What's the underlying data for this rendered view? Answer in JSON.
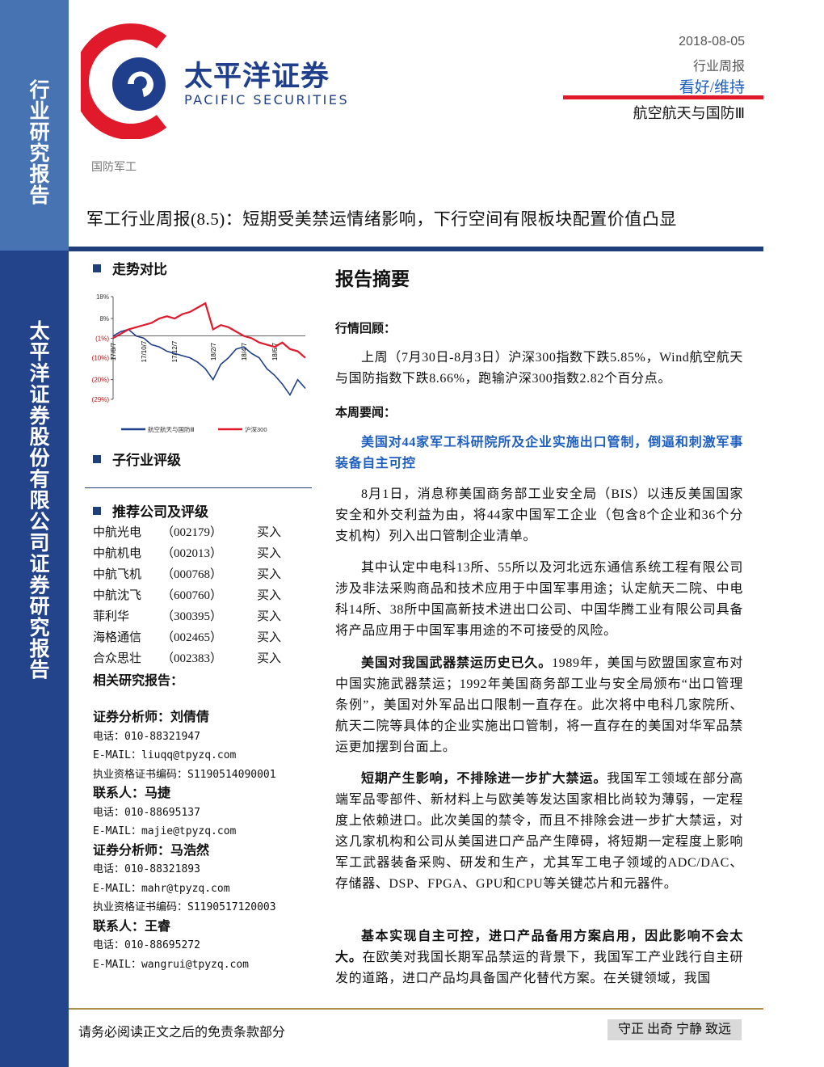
{
  "sidebar": {
    "top": "行业研究报告",
    "bottom": "太平洋证券股份有限公司证券研究报告"
  },
  "header": {
    "logo_cn": "太平洋证券",
    "logo_en": "PACIFIC SECURITIES",
    "date": "2018-08-05",
    "report_type": "行业周报",
    "rating": "看好/维持",
    "industry": "航空航天与国防Ⅲ"
  },
  "sector": "国防军工",
  "title": "军工行业周报(8.5)：短期受美禁运情绪影响，下行空间有限板块配置价值凸显",
  "left": {
    "trend_heading": "走势对比",
    "sub_rating_heading": "子行业评级",
    "recommend_heading": "推荐公司及评级",
    "companies": [
      {
        "name": "中航光电",
        "code": "（002179）",
        "rating": "买入"
      },
      {
        "name": "中航机电",
        "code": "（002013）",
        "rating": "买入"
      },
      {
        "name": "中航飞机",
        "code": "（000768）",
        "rating": "买入"
      },
      {
        "name": "中航沈飞",
        "code": "（600760）",
        "rating": "买入"
      },
      {
        "name": "菲利华",
        "code": "（300395）",
        "rating": "买入"
      },
      {
        "name": "海格通信",
        "code": "（002465）",
        "rating": "买入"
      },
      {
        "name": "合众思壮",
        "code": "（002383）",
        "rating": "买入"
      }
    ],
    "related_heading": "相关研究报告：",
    "contacts": [
      {
        "heading": "证券分析师：刘倩倩",
        "lines": [
          "电话：010-88321947",
          "E-MAIL：liuqq@tpyzq.com",
          "执业资格证书编码：S1190514090001"
        ]
      },
      {
        "heading": "联系人：马捷",
        "lines": [
          "电话：010-88695137",
          "E-MAIL：majie@tpyzq.com"
        ]
      },
      {
        "heading": "证券分析师：马浩然",
        "lines": [
          "电话：010-88321893",
          "E-MAIL：mahr@tpyzq.com",
          "执业资格证书编码：S1190517120003"
        ]
      },
      {
        "heading": "联系人：王睿",
        "lines": [
          "电话：010-88695272",
          "E-MAIL：wangrui@tpyzq.com"
        ]
      }
    ]
  },
  "chart_data": {
    "type": "line",
    "categories": [
      "17/8/7",
      null,
      null,
      null,
      "17/10/7",
      null,
      null,
      null,
      "17/12/7",
      null,
      null,
      null,
      null,
      "18/2/7",
      null,
      null,
      null,
      "18/4/7",
      null,
      null,
      null,
      "18/6/7",
      null,
      null,
      null,
      null
    ],
    "series": [
      {
        "name": "航空航天与国防Ⅲ",
        "color": "#1f3f8c",
        "values": [
          0,
          2,
          3,
          0,
          -1,
          -4,
          -5,
          -7,
          -8,
          -9,
          -10,
          -12,
          -15,
          -20,
          -13,
          -10,
          -6,
          -5,
          -8,
          -10,
          -15,
          -18,
          -22,
          -27,
          -20,
          -24
        ]
      },
      {
        "name": "沪深300",
        "color": "#e0192b",
        "values": [
          -1,
          1,
          3,
          4,
          5,
          6,
          8,
          9,
          8,
          10,
          11,
          13,
          15,
          3,
          5,
          4,
          2,
          0,
          -1,
          -3,
          -4,
          -5,
          -3,
          -6,
          -7,
          -10
        ]
      }
    ],
    "ylim": [
      -29,
      18
    ],
    "yticks": [
      {
        "value": 18,
        "label": "18%"
      },
      {
        "value": 8,
        "label": "8%"
      },
      {
        "value": -1,
        "label": "(1%)"
      },
      {
        "value": -10,
        "label": "(10%)"
      },
      {
        "value": -20,
        "label": "(20%)"
      },
      {
        "value": -29,
        "label": "(29%)"
      }
    ]
  },
  "summary": {
    "heading": "报告摘要",
    "review_heading": "行情回顾：",
    "review_text": "上周（7月30日-8月3日）沪深300指数下跌5.85%，Wind航空航天与国防指数下跌8.66%，跑输沪深300指数2.82个百分点。",
    "news_heading": "本周要闻：",
    "highlight": "美国对44家军工科研院所及企业实施出口管制，倒逼和刺激军事装备自主可控",
    "paragraphs": [
      {
        "text": "8月1日，消息称美国商务部工业安全局（BIS）以违反美国国家安全和外交利益为由，将44家中国军工企业（包含8个企业和36个分支机构）列入出口管制企业清单。"
      },
      {
        "text": "其中认定中电科13所、55所以及河北远东通信系统工程有限公司涉及非法采购商品和技术应用于中国军事用途；认定航天二院、中电科14所、38所中国高新技术进出口公司、中国华腾工业有限公司具备将产品应用于中国军事用途的不可接受的风险。"
      },
      {
        "lead": "美国对我国武器禁运历史已久。",
        "text": "1989年，美国与欧盟国家宣布对中国实施武器禁运；1992年美国商务部工业与安全局颁布“出口管理条例”，美国对外军品出口限制一直存在。此次将中电科几家院所、航天二院等具体的企业实施出口管制，将一直存在的美国对华军品禁运更加摆到台面上。"
      },
      {
        "lead": "短期产生影响，不排除进一步扩大禁运。",
        "text": "我国军工领域在部分高端军品零部件、新材料上与欧美等发达国家相比尚较为薄弱，一定程度上依赖进口。此次美国的禁令，而且不排除会进一步扩大禁运，对这几家机构和公司从美国进口产品产生障碍，将短期一定程度上影响军工武器装备采购、研发和生产，尤其军工电子领域的ADC/DAC、存储器、DSP、FPGA、GPU和CPU等关键芯片和元器件。"
      },
      {
        "lead": "基本实现自主可控，进口产品备用方案启用，因此影响不会太大。",
        "text": "在欧美对我国长期军品禁运的背景下，我国军工产业践行自主研发的道路，进口产品均具备国产化替代方案。在关键领域，我国"
      }
    ]
  },
  "footer": {
    "disclaimer": "请务必阅读正文之后的免责条款部分",
    "motto": "守正 出奇 宁静 致远"
  }
}
